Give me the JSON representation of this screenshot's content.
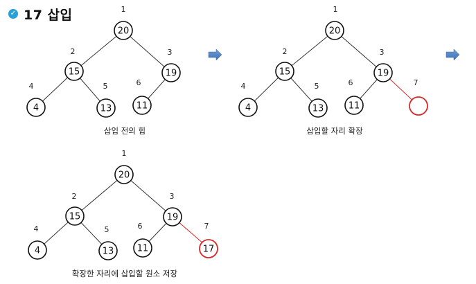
{
  "header": {
    "title": "17 삽입",
    "icon": "check-circle-icon"
  },
  "colors": {
    "accent": "#2aa0d8",
    "highlight": "#d62a2a",
    "arrow": "#4a7fc1"
  },
  "panels": [
    {
      "caption": "삽입 전의 힙",
      "nodes": [
        {
          "index": "1",
          "value": "20"
        },
        {
          "index": "2",
          "value": "15"
        },
        {
          "index": "3",
          "value": "19"
        },
        {
          "index": "4",
          "value": "4"
        },
        {
          "index": "5",
          "value": "13"
        },
        {
          "index": "6",
          "value": "11"
        }
      ]
    },
    {
      "caption": "삽입할 자리 확장",
      "nodes": [
        {
          "index": "1",
          "value": "20"
        },
        {
          "index": "2",
          "value": "15"
        },
        {
          "index": "3",
          "value": "19"
        },
        {
          "index": "4",
          "value": "4"
        },
        {
          "index": "5",
          "value": "13"
        },
        {
          "index": "6",
          "value": "11"
        },
        {
          "index": "7",
          "value": ""
        }
      ]
    },
    {
      "caption": "확장한 자리에 삽입할 원소 저장",
      "nodes": [
        {
          "index": "1",
          "value": "20"
        },
        {
          "index": "2",
          "value": "15"
        },
        {
          "index": "3",
          "value": "19"
        },
        {
          "index": "4",
          "value": "4"
        },
        {
          "index": "5",
          "value": "13"
        },
        {
          "index": "6",
          "value": "11"
        },
        {
          "index": "7",
          "value": "17"
        }
      ]
    }
  ]
}
